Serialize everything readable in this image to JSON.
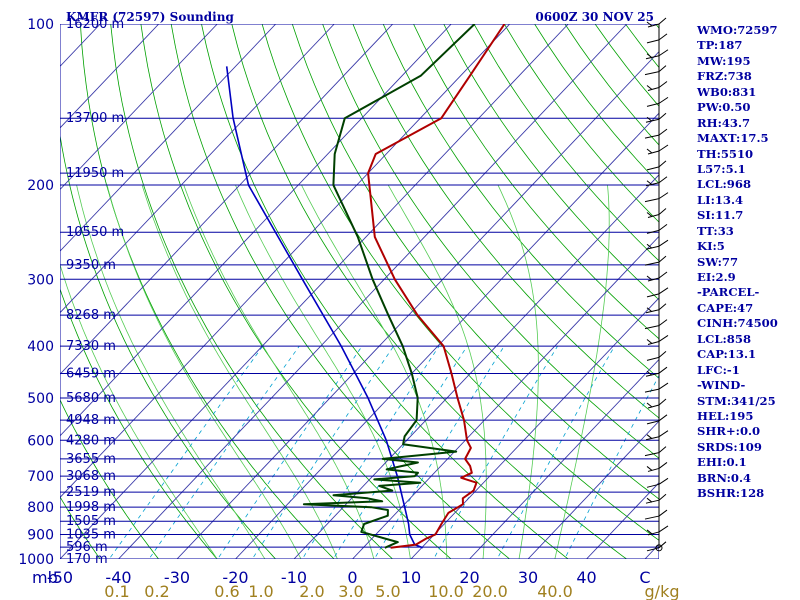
{
  "title_left": "KMFR (72597) Sounding",
  "title_right": "0600Z 30 NOV 25",
  "chart_data": {
    "type": "skew-t",
    "pressure_levels": [
      100,
      200,
      300,
      400,
      500,
      600,
      700,
      800,
      900,
      1000
    ],
    "pressure_tick_labels": [
      "100",
      "200",
      "300",
      "400",
      "500",
      "600",
      "700",
      "800",
      "900",
      "1000"
    ],
    "temperature_ticks": [
      -50,
      -40,
      -30,
      -20,
      -10,
      0,
      10,
      20,
      30,
      40,
      50
    ],
    "temperature_tick_labels": [
      "-50",
      "-40",
      "-30",
      "-20",
      "-10",
      "0",
      "10",
      "20",
      "30",
      "40",
      "C"
    ],
    "bottom_left_label": "mb",
    "mixing_ratio_labels": [
      "0.1",
      "0.2",
      "0.6",
      "1.0",
      "2.0",
      "3.0",
      "5.0",
      "10.0",
      "20.0",
      "40.0",
      "g/kg"
    ],
    "heights": [
      {
        "p": 100,
        "label": "16200 m"
      },
      {
        "p": 150,
        "label": "13700 m"
      },
      {
        "p": 190,
        "label": "11950 m"
      },
      {
        "p": 245,
        "label": "10550 m"
      },
      {
        "p": 282,
        "label": "9350 m"
      },
      {
        "p": 350,
        "label": "8268 m"
      },
      {
        "p": 400,
        "label": "7330 m"
      },
      {
        "p": 450,
        "label": "6459 m"
      },
      {
        "p": 500,
        "label": "5680 m"
      },
      {
        "p": 550,
        "label": "4948 m"
      },
      {
        "p": 600,
        "label": "4280 m"
      },
      {
        "p": 650,
        "label": "3655 m"
      },
      {
        "p": 700,
        "label": "3068 m"
      },
      {
        "p": 750,
        "label": "2519 m"
      },
      {
        "p": 800,
        "label": "1998 m"
      },
      {
        "p": 850,
        "label": "1505 m"
      },
      {
        "p": 900,
        "label": "1035 m"
      },
      {
        "p": 950,
        "label": "596 m"
      },
      {
        "p": 1000,
        "label": "170 m"
      }
    ],
    "temperature": [
      {
        "p": 953,
        "t": 4.7
      },
      {
        "p": 940,
        "t": 8.5
      },
      {
        "p": 915,
        "t": 9.3
      },
      {
        "p": 900,
        "t": 10.2
      },
      {
        "p": 860,
        "t": 9.5
      },
      {
        "p": 820,
        "t": 8.9
      },
      {
        "p": 790,
        "t": 10.0
      },
      {
        "p": 770,
        "t": 9.0
      },
      {
        "p": 745,
        "t": 9.6
      },
      {
        "p": 720,
        "t": 8.8
      },
      {
        "p": 705,
        "t": 5.4
      },
      {
        "p": 690,
        "t": 6.4
      },
      {
        "p": 670,
        "t": 5.0
      },
      {
        "p": 650,
        "t": 3.0
      },
      {
        "p": 620,
        "t": 2.2
      },
      {
        "p": 600,
        "t": 0.3
      },
      {
        "p": 550,
        "t": -3.5
      },
      {
        "p": 500,
        "t": -8.2
      },
      {
        "p": 450,
        "t": -13.2
      },
      {
        "p": 400,
        "t": -19.0
      },
      {
        "p": 350,
        "t": -28.5
      },
      {
        "p": 300,
        "t": -38.2
      },
      {
        "p": 250,
        "t": -48.5
      },
      {
        "p": 190,
        "t": -60.0
      },
      {
        "p": 175,
        "t": -61.8
      },
      {
        "p": 150,
        "t": -56.4
      },
      {
        "p": 125,
        "t": -58.4
      },
      {
        "p": 100,
        "t": -60.9
      }
    ],
    "dewpoint": [
      {
        "p": 953,
        "t": 3.7
      },
      {
        "p": 930,
        "t": 5.0
      },
      {
        "p": 890,
        "t": -2.9
      },
      {
        "p": 860,
        "t": -3.7
      },
      {
        "p": 830,
        "t": -1.0
      },
      {
        "p": 810,
        "t": -1.9
      },
      {
        "p": 800,
        "t": -5.2
      },
      {
        "p": 790,
        "t": -17.2
      },
      {
        "p": 780,
        "t": -4.3
      },
      {
        "p": 770,
        "t": -7.3
      },
      {
        "p": 760,
        "t": -13.6
      },
      {
        "p": 745,
        "t": -4.3
      },
      {
        "p": 730,
        "t": -7.3
      },
      {
        "p": 720,
        "t": -0.8
      },
      {
        "p": 710,
        "t": -9.2
      },
      {
        "p": 700,
        "t": -2.8
      },
      {
        "p": 690,
        "t": -2.8
      },
      {
        "p": 680,
        "t": -8.7
      },
      {
        "p": 660,
        "t": -4.5
      },
      {
        "p": 650,
        "t": -11.1
      },
      {
        "p": 630,
        "t": 0.3
      },
      {
        "p": 610,
        "t": -10.0
      },
      {
        "p": 590,
        "t": -11.0
      },
      {
        "p": 550,
        "t": -11.6
      },
      {
        "p": 500,
        "t": -15.0
      },
      {
        "p": 450,
        "t": -20.0
      },
      {
        "p": 400,
        "t": -26.0
      },
      {
        "p": 350,
        "t": -33.5
      },
      {
        "p": 300,
        "t": -42.0
      },
      {
        "p": 250,
        "t": -51.4
      },
      {
        "p": 200,
        "t": -64.0
      },
      {
        "p": 175,
        "t": -68.8
      },
      {
        "p": 150,
        "t": -72.9
      },
      {
        "p": 125,
        "t": -66.8
      },
      {
        "p": 100,
        "t": -66.0
      }
    ],
    "parcel": [
      {
        "p": 953,
        "t": 10.2
      },
      {
        "p": 940,
        "t": 8.3
      },
      {
        "p": 900,
        "t": 5.8
      },
      {
        "p": 860,
        "t": 3.9
      },
      {
        "p": 800,
        "t": 0.5
      },
      {
        "p": 700,
        "t": -5.8
      },
      {
        "p": 600,
        "t": -13.5
      },
      {
        "p": 500,
        "t": -23.5
      },
      {
        "p": 400,
        "t": -36.5
      },
      {
        "p": 300,
        "t": -54.0
      },
      {
        "p": 200,
        "t": -78.5
      },
      {
        "p": 150,
        "t": -92.0
      },
      {
        "p": 120,
        "t": -101.5
      }
    ],
    "surface_pressure": 953
  },
  "indices": [
    "WMO:72597",
    "TP:187",
    "MW:195",
    "FRZ:738",
    "WB0:831",
    "PW:0.50",
    "RH:43.7",
    "MAXT:17.5",
    "TH:5510",
    "L57:5.1",
    "LCL:968",
    "LI:13.4",
    "SI:11.7",
    "TT:33",
    "KI:5",
    "SW:77",
    "EI:2.9",
    "-PARCEL-",
    "CAPE:47",
    "CINH:74500",
    "LCL:858",
    "CAP:13.1",
    "LFC:-1",
    "-WIND-",
    "STM:341/25",
    "HEL:195",
    "SHR+:0.0",
    "SRDS:109",
    "EHI:0.1",
    "BRN:0.4",
    "BSHR:128"
  ],
  "colors": {
    "isobar": "#0000a0",
    "isotherm": "#3a3aa8",
    "dry_adiabat": "#00a000",
    "moist_adiabat": "#55cc55",
    "mixing_ratio": "#00a0d0",
    "temperature": "#b00000",
    "dewpoint": "#004000",
    "parcel": "#0000c0",
    "axis_text": "#0000a0",
    "mixing_text": "#a08020"
  }
}
